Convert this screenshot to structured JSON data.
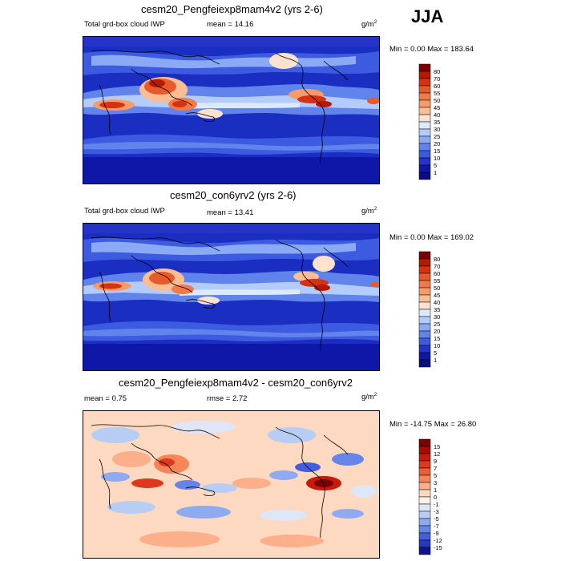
{
  "season": "JJA",
  "panels": [
    {
      "id": "p1",
      "title": "cesm20_Pengfeiexp8mam4v2 (yrs 2-6)",
      "left_label": "Total grd-box cloud IWP",
      "mean_label": "mean =",
      "mean_value": "14.16",
      "units": "g/m",
      "units_sup": "2",
      "minmax": "Min =   0.00 Max = 183.64",
      "colorbar": {
        "labels": [
          "80",
          "70",
          "60",
          "55",
          "50",
          "45",
          "40",
          "35",
          "30",
          "25",
          "20",
          "15",
          "10",
          "5",
          "1"
        ],
        "colors": [
          "#7b0000",
          "#b31a00",
          "#d63212",
          "#e85a2a",
          "#f27a48",
          "#f79b6a",
          "#fbbd92",
          "#fde3cf",
          "#ddeafe",
          "#b3ccfb",
          "#8aaaf5",
          "#6083ec",
          "#3d5be0",
          "#2533c8",
          "#0f17a8",
          "#0a0c82"
        ]
      }
    },
    {
      "id": "p2",
      "title": "cesm20_con6yrv2 (yrs 2-6)",
      "left_label": "Total grd-box cloud IWP",
      "mean_label": "mean =",
      "mean_value": "13.41",
      "units": "g/m",
      "units_sup": "2",
      "minmax": "Min =   0.00 Max = 169.02",
      "colorbar": {
        "labels": [
          "80",
          "70",
          "60",
          "55",
          "50",
          "45",
          "40",
          "35",
          "30",
          "25",
          "20",
          "15",
          "10",
          "5",
          "1"
        ],
        "colors": [
          "#7b0000",
          "#b31a00",
          "#d63212",
          "#e85a2a",
          "#f27a48",
          "#f79b6a",
          "#fbbd92",
          "#fde3cf",
          "#ddeafe",
          "#b3ccfb",
          "#8aaaf5",
          "#6083ec",
          "#3d5be0",
          "#2533c8",
          "#0f17a8",
          "#0a0c82"
        ]
      }
    },
    {
      "id": "p3",
      "title": "cesm20_Pengfeiexp8mam4v2 - cesm20_con6yrv2",
      "mean_label": "mean =",
      "mean_value": "0.75",
      "rmse_label": "rmse =",
      "rmse_value": "2.72",
      "units": "g/m",
      "units_sup": "2",
      "minmax": "Min = -14.75 Max =  26.80",
      "colorbar": {
        "labels": [
          "15",
          "12",
          "9",
          "7",
          "5",
          "3",
          "1",
          "0",
          "-1",
          "-3",
          "-5",
          "-7",
          "-9",
          "-12",
          "-15"
        ],
        "colors": [
          "#7b0000",
          "#a30e00",
          "#c61a0d",
          "#dc3a1e",
          "#ec5d35",
          "#f6865a",
          "#fbb08b",
          "#fdd9c2",
          "#fff0e6",
          "#dfe7f7",
          "#b8cdf3",
          "#8eaaf0",
          "#6685e8",
          "#425edc",
          "#2837c4",
          "#10148c"
        ]
      }
    }
  ]
}
